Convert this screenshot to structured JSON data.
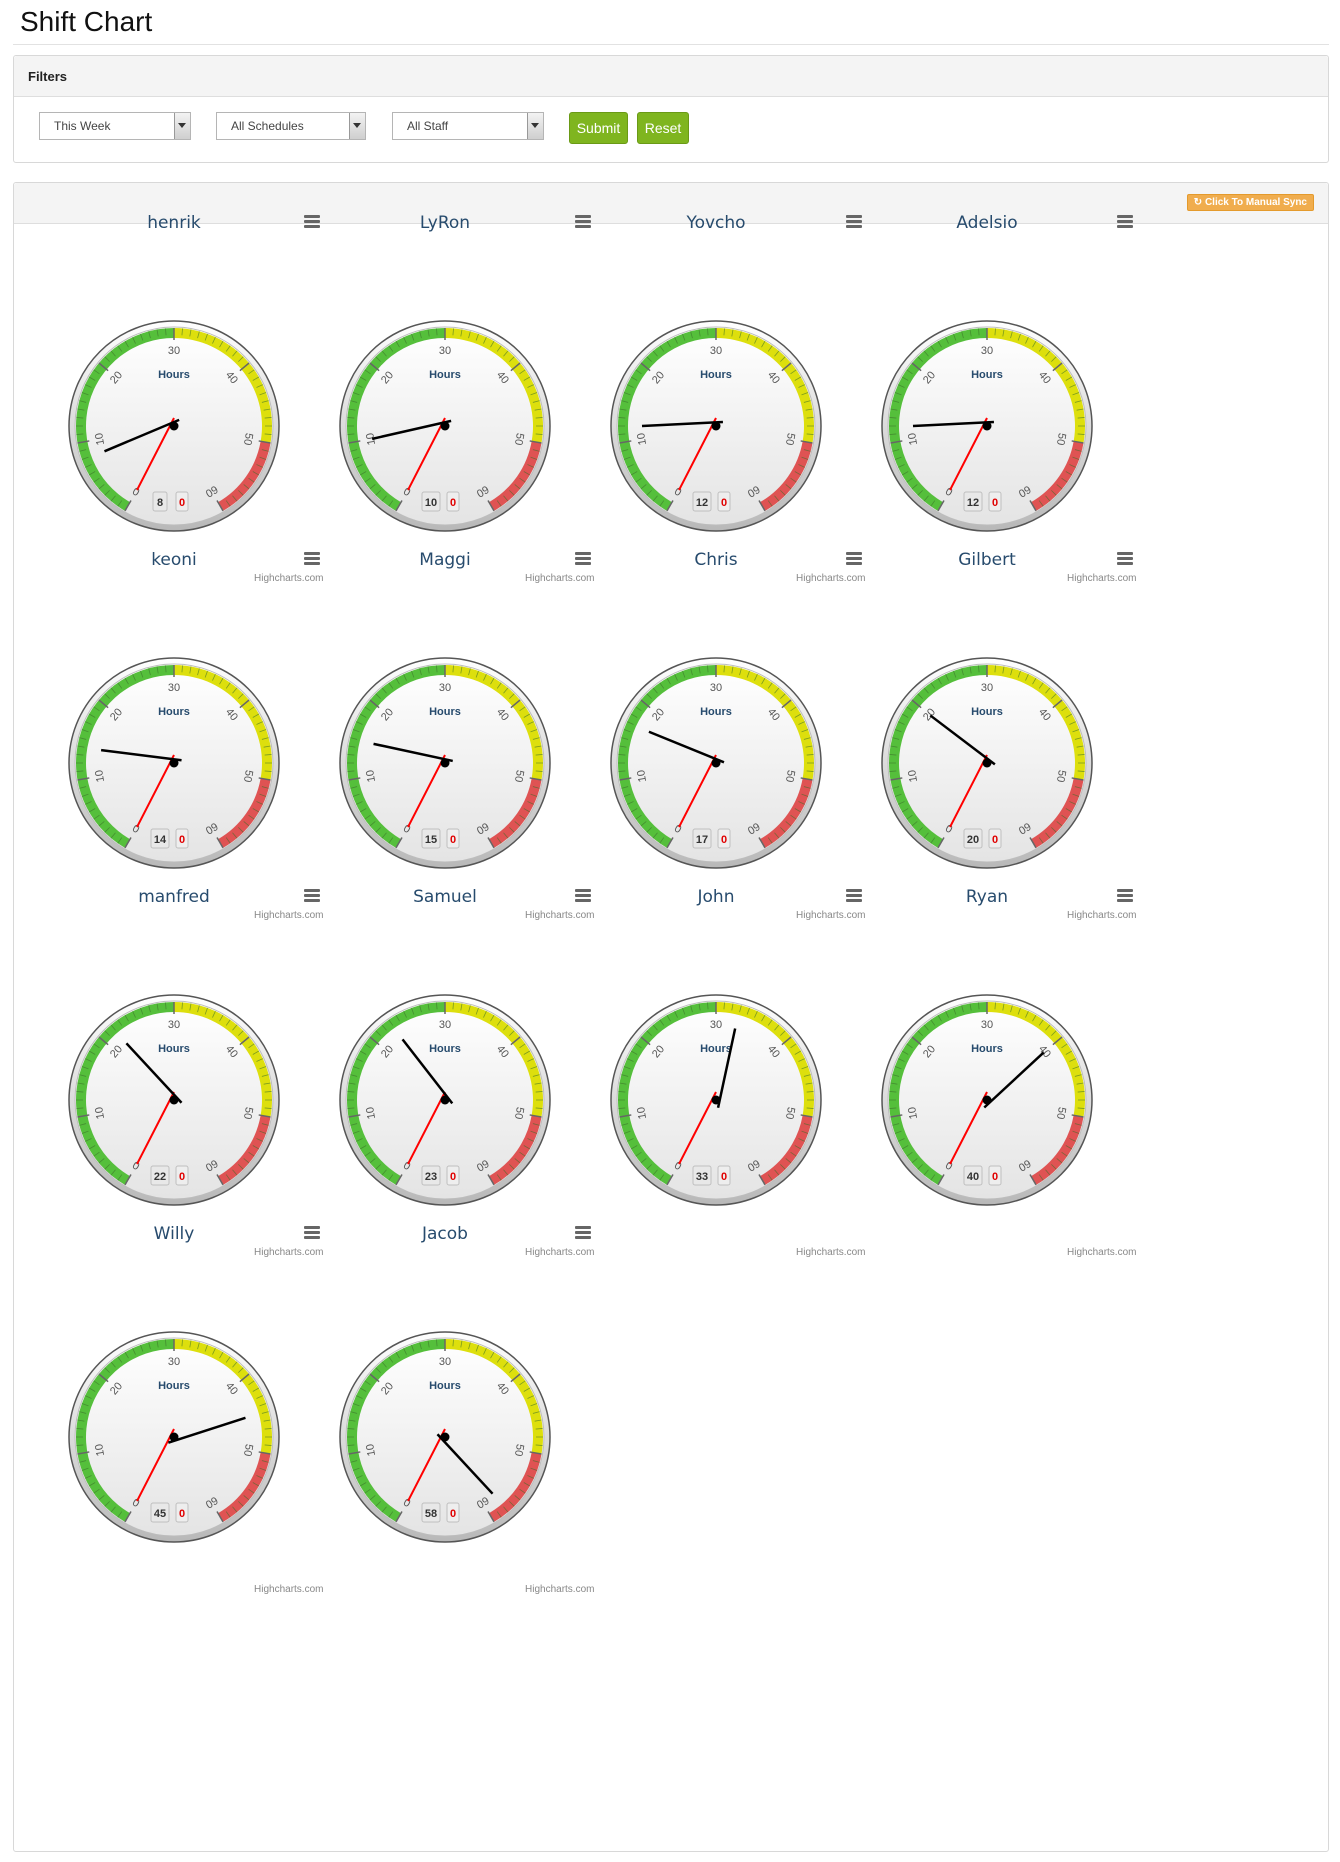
{
  "page": {
    "title": "Shift Chart"
  },
  "filters": {
    "heading": "Filters",
    "week": "This Week",
    "schedule": "All Schedules",
    "staff": "All Staff",
    "submit_label": "Submit",
    "reset_label": "Reset"
  },
  "toolbar": {
    "sync_label": "Click To Manual Sync",
    "sync_icon": "refresh-icon"
  },
  "gauge_common": {
    "unit_title": "Hours",
    "ticks": [
      "0",
      "10",
      "20",
      "30",
      "40",
      "50",
      "60"
    ],
    "credit": "Highcharts.com",
    "bands": [
      {
        "from": 0,
        "to": 30,
        "color": "#55bf3b"
      },
      {
        "from": 30,
        "to": 50,
        "color": "#dddf0d"
      },
      {
        "from": 50,
        "to": 60,
        "color": "#df5353"
      }
    ],
    "overtime_needle_color": "#ff0000",
    "hours_needle_color": "#000000"
  },
  "chart_data": {
    "type": "gauge",
    "min": 0,
    "max": 60,
    "series": [
      {
        "name": "Hours",
        "values": [
          8,
          10,
          12,
          12,
          14,
          15,
          17,
          20,
          22,
          23,
          33,
          40,
          45,
          58
        ]
      },
      {
        "name": "Overtime",
        "values": [
          0,
          0,
          0,
          0,
          0,
          0,
          0,
          0,
          0,
          0,
          0,
          0,
          0,
          0
        ]
      }
    ],
    "staff": [
      {
        "name": "henrik",
        "hours": 8,
        "overtime": 0
      },
      {
        "name": "LyRon",
        "hours": 10,
        "overtime": 0
      },
      {
        "name": "Yovcho",
        "hours": 12,
        "overtime": 0
      },
      {
        "name": "Adelsio",
        "hours": 12,
        "overtime": 0
      },
      {
        "name": "keoni",
        "hours": 14,
        "overtime": 0
      },
      {
        "name": "Maggi",
        "hours": 15,
        "overtime": 0
      },
      {
        "name": "Chris",
        "hours": 17,
        "overtime": 0
      },
      {
        "name": "Gilbert",
        "hours": 20,
        "overtime": 0
      },
      {
        "name": "manfred",
        "hours": 22,
        "overtime": 0
      },
      {
        "name": "Samuel",
        "hours": 23,
        "overtime": 0
      },
      {
        "name": "John",
        "hours": 33,
        "overtime": 0
      },
      {
        "name": "Ryan",
        "hours": 40,
        "overtime": 0
      },
      {
        "name": "Willy",
        "hours": 45,
        "overtime": 0
      },
      {
        "name": "Jacob",
        "hours": 58,
        "overtime": 0
      }
    ]
  }
}
